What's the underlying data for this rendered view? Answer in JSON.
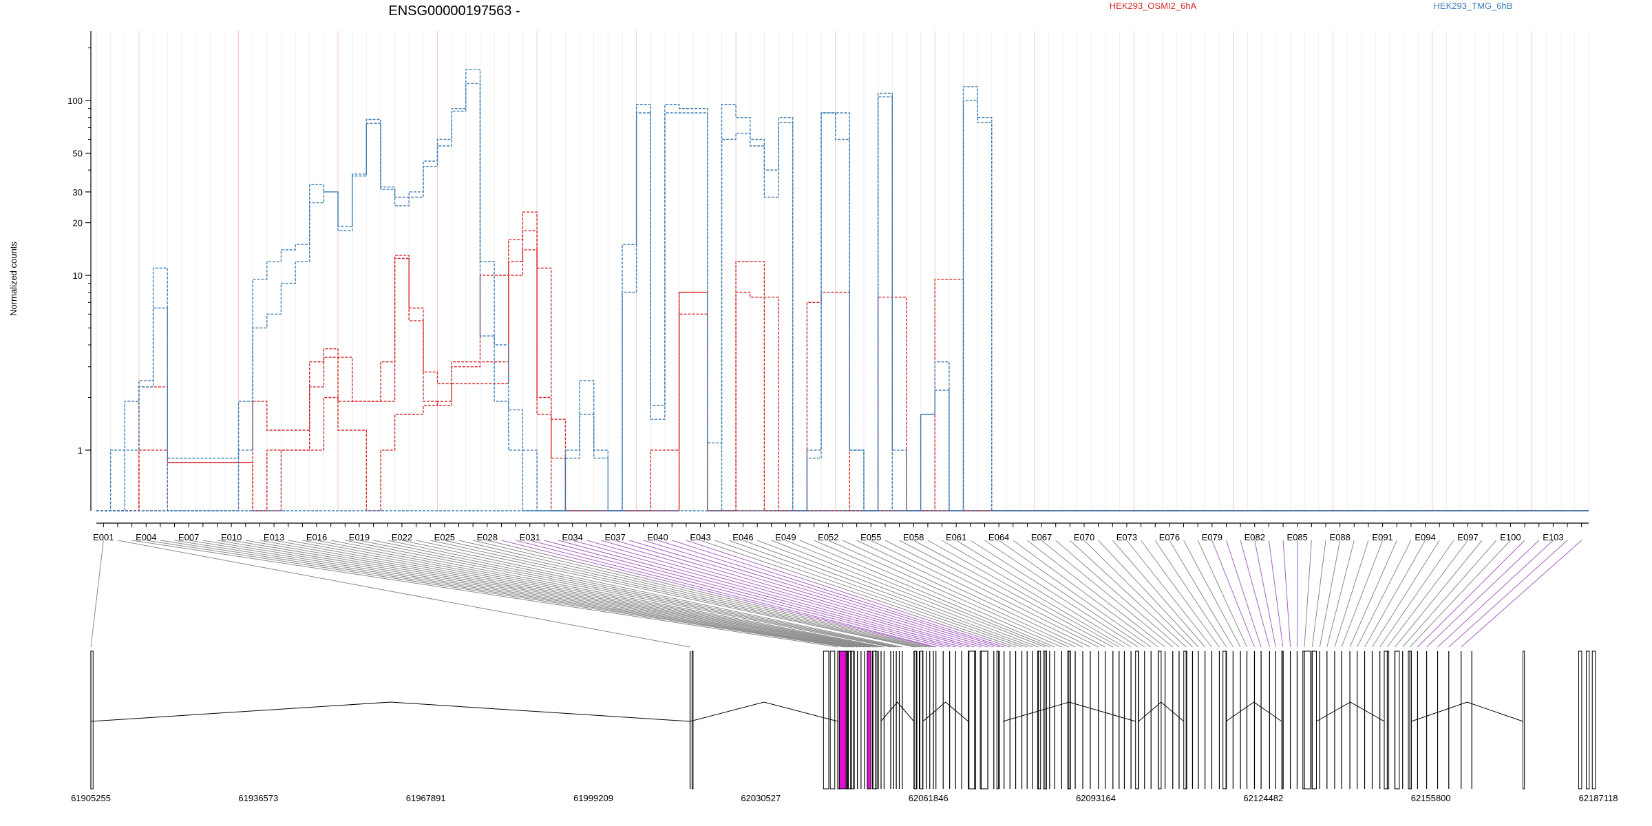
{
  "chart_data": {
    "type": "line",
    "title": "ENSG00000197563 -",
    "ylabel": "Normalized counts",
    "yscale": "log",
    "ylim": [
      0.45,
      250
    ],
    "yticks": [
      1,
      10,
      20,
      30,
      50,
      100
    ],
    "legend": [
      {
        "name": "HEK293_OSMI2_6hA",
        "color": "#d62728"
      },
      {
        "name": "HEK293_TMG_6hB",
        "color": "#3b7db8"
      }
    ],
    "exon_count": 105,
    "exon_tick_labels": [
      "E001",
      "E004",
      "E007",
      "E010",
      "E013",
      "E016",
      "E019",
      "E022",
      "E025",
      "E028",
      "E031",
      "E034",
      "E037",
      "E040",
      "E043",
      "E046",
      "E049",
      "E052",
      "E055",
      "E058",
      "E061",
      "E064",
      "E067",
      "E070",
      "E073",
      "E076",
      "E079",
      "E082",
      "E085",
      "E088",
      "E091",
      "E094",
      "E097",
      "E100",
      "E103"
    ],
    "series": [
      {
        "name": "HEK293_OSMI2_6hA",
        "group": 0,
        "color": "#d62728",
        "values": [
          0.45,
          0.45,
          0.45,
          2.3,
          2.3,
          0.85,
          0.85,
          0.85,
          0.85,
          0.85,
          0.85,
          1.9,
          1.3,
          1.3,
          1.3,
          2.3,
          3.4,
          3.4,
          1.9,
          1.9,
          1.9,
          12.5,
          5.5,
          2.8,
          2.4,
          3.2,
          3.2,
          3.2,
          3.2,
          10,
          18,
          2,
          1.5,
          0.45,
          0.45,
          0.45,
          0.45,
          0.45,
          0.45,
          0.45,
          0.45,
          8,
          8,
          0.45,
          0.45,
          0.45,
          0.45,
          0.45,
          0.45,
          0.45,
          0.45,
          0.45,
          0.45,
          0.45,
          0.45,
          0.45,
          0.45,
          0.45,
          0.45,
          0.45,
          0.45,
          0.45,
          0.45,
          0.45,
          0.45,
          0.45,
          0.45,
          0.45,
          0.45,
          0.45,
          0.45,
          0.45,
          0.45,
          0.45,
          0.45,
          0.45,
          0.45,
          0.45,
          0.45,
          0.45,
          0.45,
          0.45,
          0.45,
          0.45,
          0.45,
          0.45,
          0.45,
          0.45,
          0.45,
          0.45,
          0.45,
          0.45,
          0.45,
          0.45,
          0.45,
          0.45,
          0.45,
          0.45,
          0.45,
          0.45,
          0.45,
          0.45,
          0.45,
          0.45,
          0.45
        ]
      },
      {
        "name": "HEK293_OSMI2_6hA",
        "group": 0,
        "color": "#d62728",
        "values": [
          0.45,
          0.45,
          0.45,
          1.0,
          1.0,
          0.85,
          0.85,
          0.85,
          0.85,
          0.85,
          0.85,
          0.45,
          0.45,
          1.0,
          1.0,
          1.0,
          2.0,
          1.3,
          1.3,
          0.45,
          1.0,
          1.6,
          1.6,
          1.8,
          1.9,
          2.4,
          2.4,
          2.4,
          2.4,
          12,
          14,
          1.6,
          0.9,
          0.45,
          0.45,
          0.45,
          0.45,
          0.45,
          0.45,
          0.45,
          0.45,
          8,
          8,
          0.45,
          0.45,
          8,
          7.5,
          7.5,
          0.45,
          0.45,
          7,
          8,
          8,
          0.45,
          0.45,
          7.5,
          7.5,
          0.45,
          0.45,
          9.5,
          9.5,
          0.45,
          0.45,
          0.45,
          0.45,
          0.45,
          0.45,
          0.45,
          0.45,
          0.45,
          0.45,
          0.45,
          0.45,
          0.45,
          0.45,
          0.45,
          0.45,
          0.45,
          0.45,
          0.45,
          0.45,
          0.45,
          0.45,
          0.45,
          0.45,
          0.45,
          0.45,
          0.45,
          0.45,
          0.45,
          0.45,
          0.45,
          0.45,
          0.45,
          0.45,
          0.45,
          0.45,
          0.45,
          0.45,
          0.45,
          0.45,
          0.45,
          0.45,
          0.45,
          0.45
        ]
      },
      {
        "name": "HEK293_OSMI2_6hA",
        "group": 0,
        "color": "#d62728",
        "values": [
          0.45,
          0.45,
          0.45,
          0.45,
          0.45,
          0.85,
          0.85,
          0.85,
          0.85,
          0.85,
          0.85,
          0.45,
          1.0,
          1.0,
          1.0,
          3.2,
          3.8,
          1.9,
          1.9,
          1.9,
          3.2,
          13,
          6.5,
          1.9,
          1.8,
          3.0,
          3.0,
          10,
          10,
          16,
          23,
          11,
          0.45,
          0.45,
          0.45,
          0.45,
          0.45,
          0.45,
          0.45,
          1.0,
          1.0,
          6,
          6,
          0.45,
          0.45,
          12,
          12,
          0.45,
          0.45,
          0.45,
          0.45,
          0.45,
          0.45,
          0.45,
          0.45,
          0.45,
          0.45,
          0.45,
          0.45,
          0.45,
          0.45,
          0.45,
          0.45,
          0.45,
          0.45,
          0.45,
          0.45,
          0.45,
          0.45,
          0.45,
          0.45,
          0.45,
          0.45,
          0.45,
          0.45,
          0.45,
          0.45,
          0.45,
          0.45,
          0.45,
          0.45,
          0.45,
          0.45,
          0.45,
          0.45,
          0.45,
          0.45,
          0.45,
          0.45,
          0.45,
          0.45,
          0.45,
          0.45,
          0.45,
          0.45,
          0.45,
          0.45,
          0.45,
          0.45,
          0.45,
          0.45,
          0.45,
          0.45,
          0.45,
          0.45
        ]
      },
      {
        "name": "HEK293_TMG_6hB",
        "group": 1,
        "color": "#3b7db8",
        "values": [
          0.45,
          1.0,
          1.9,
          2.5,
          11,
          0.9,
          0.9,
          0.9,
          0.9,
          0.9,
          1.9,
          9.5,
          12,
          14,
          15,
          33,
          30,
          18,
          37,
          78,
          32,
          28,
          30,
          45,
          60,
          87,
          150,
          12,
          4,
          1.7,
          1.0,
          0.45,
          0.45,
          1.0,
          2.5,
          1.0,
          0.45,
          0.45,
          0.45,
          0.45,
          0.45,
          0.45,
          0.45,
          0.45,
          0.45,
          0.45,
          0.45,
          0.45,
          0.45,
          0.45,
          0.45,
          0.45,
          0.45,
          0.45,
          0.45,
          0.45,
          0.45,
          0.45,
          0.45,
          0.45,
          0.45,
          0.45,
          0.45,
          0.45,
          0.45,
          0.45,
          0.45,
          0.45,
          0.45,
          0.45,
          0.45,
          0.45,
          0.45,
          0.45,
          0.45,
          0.45,
          0.45,
          0.45,
          0.45,
          0.45,
          0.45,
          0.45,
          0.45,
          0.45,
          0.45,
          0.45,
          0.45,
          0.45,
          0.45,
          0.45,
          0.45,
          0.45,
          0.45,
          0.45,
          0.45,
          0.45,
          0.45,
          0.45,
          0.45,
          0.45,
          0.45,
          0.45,
          0.45,
          0.45,
          0.45
        ]
      },
      {
        "name": "HEK293_TMG_6hB",
        "group": 1,
        "color": "#3b7db8",
        "values": [
          0.45,
          0.45,
          1.0,
          2.3,
          6.5,
          0.45,
          0.45,
          0.45,
          0.45,
          0.45,
          1.0,
          5,
          6,
          9,
          12,
          26,
          30,
          19,
          38,
          74,
          31,
          25,
          28,
          42,
          55,
          90,
          125,
          4.5,
          1.9,
          1.0,
          0.45,
          0.45,
          0.45,
          0.9,
          1.6,
          0.9,
          0.45,
          8,
          85,
          1.5,
          85,
          85,
          85,
          1.1,
          95,
          80,
          55,
          40,
          80,
          0.45,
          0.9,
          85,
          60,
          1.0,
          0.45,
          105,
          1.0,
          0.45,
          1.6,
          2.2,
          0.45,
          100,
          80,
          0.45,
          0.45,
          0.45,
          0.45,
          0.45,
          0.45,
          0.45,
          0.45,
          0.45,
          0.45,
          0.45,
          0.45,
          0.45,
          0.45,
          0.45,
          0.45,
          0.45,
          0.45,
          0.45,
          0.45,
          0.45,
          0.45,
          0.45,
          0.45,
          0.45,
          0.45,
          0.45,
          0.45,
          0.45,
          0.45,
          0.45,
          0.45,
          0.45,
          0.45,
          0.45,
          0.45,
          0.45,
          0.45,
          0.45,
          0.45,
          0.45,
          0.45
        ]
      },
      {
        "name": "HEK293_TMG_6hB",
        "group": 1,
        "color": "#3b7db8",
        "values": [
          0.45,
          0.45,
          0.45,
          0.45,
          0.45,
          0.45,
          0.45,
          0.45,
          0.45,
          0.45,
          0.45,
          0.45,
          0.45,
          0.45,
          0.45,
          0.45,
          0.45,
          0.45,
          0.45,
          0.45,
          0.45,
          0.45,
          0.45,
          0.45,
          0.45,
          0.45,
          0.45,
          0.45,
          0.45,
          0.45,
          0.45,
          0.45,
          0.45,
          0.45,
          0.45,
          0.45,
          0.45,
          15,
          95,
          1.8,
          95,
          90,
          90,
          0.45,
          60,
          65,
          60,
          28,
          75,
          0.45,
          1.0,
          85,
          85,
          1.0,
          0.45,
          110,
          0.45,
          0.45,
          1.6,
          3.2,
          0.45,
          120,
          75,
          0.45,
          0.45,
          0.45,
          0.45,
          0.45,
          0.45,
          0.45,
          0.45,
          0.45,
          0.45,
          0.45,
          0.45,
          0.45,
          0.45,
          0.45,
          0.45,
          0.45,
          0.45,
          0.45,
          0.45,
          0.45,
          0.45,
          0.45,
          0.45,
          0.45,
          0.45,
          0.45,
          0.45,
          0.45,
          0.45,
          0.45,
          0.45,
          0.45,
          0.45,
          0.45,
          0.45,
          0.45,
          0.45,
          0.45,
          0.45,
          0.45,
          0.45
        ]
      }
    ],
    "xlabel_genomic_ticks": [
      "61905255",
      "61936573",
      "61967891",
      "61999209",
      "62030527",
      "62061846",
      "62093164",
      "62124482",
      "62155800",
      "62187118"
    ]
  }
}
